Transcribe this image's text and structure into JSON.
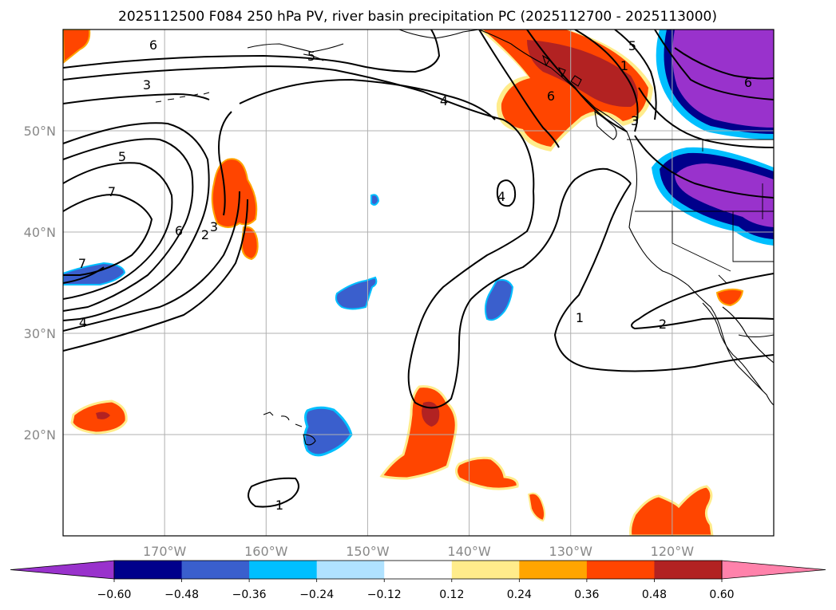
{
  "title": "2025112500 F084 250 hPa PV, river basin precipitation PC (2025112700 - 2025113000)",
  "map": {
    "projection": "lat-lon",
    "lon_range": [
      -180,
      -110
    ],
    "lat_range": [
      10,
      60
    ],
    "lon_ticks": [
      -170,
      -160,
      -150,
      -140,
      -130,
      -120
    ],
    "lon_tick_labels": [
      "170°W",
      "160°W",
      "150°W",
      "140°W",
      "130°W",
      "120°W"
    ],
    "lat_ticks": [
      20,
      30,
      40,
      50
    ],
    "lat_tick_labels": [
      "20°N",
      "30°N",
      "40°N",
      "50°N"
    ],
    "grid": true
  },
  "colorbar": {
    "extend": "both",
    "boundaries": [
      -0.6,
      -0.48,
      -0.36,
      -0.24,
      -0.12,
      0.12,
      0.24,
      0.36,
      0.48,
      0.6
    ],
    "labels": [
      "−0.60",
      "−0.48",
      "−0.36",
      "−0.24",
      "−0.12",
      "0.12",
      "0.24",
      "0.36",
      "0.48",
      "0.60"
    ],
    "colors": [
      "#9932cc",
      "#00008b",
      "#3a5fcd",
      "#00bfff",
      "#b0e2ff",
      "#ffffff",
      "#ffec8b",
      "#ffa500",
      "#ff4500",
      "#b22222",
      "#ff82ab"
    ]
  },
  "contour_labels": [
    "6",
    "3",
    "5",
    "7",
    "6",
    "2",
    "3",
    "7",
    "4",
    "5",
    "4",
    "4",
    "5",
    "1",
    "6",
    "1",
    "2",
    "1",
    "6",
    "3"
  ],
  "chart_data": {
    "type": "map",
    "fields": [
      "250 hPa PV (PVU contours)",
      "river basin precipitation PC (shaded)"
    ],
    "pv_contour_levels": [
      1,
      2,
      3,
      4,
      5,
      6,
      7
    ],
    "shaded_features": [
      {
        "sign": "positive",
        "max_class": "0.48-0.60",
        "lon": -133,
        "lat": 55
      },
      {
        "sign": "positive",
        "max_class": "0.48-0.60",
        "lon": -145,
        "lat": 22
      },
      {
        "sign": "positive",
        "max_class": "0.48-0.60",
        "lon": -176,
        "lat": 22
      },
      {
        "sign": "positive",
        "max_class": "0.36-0.48",
        "lon": -163,
        "lat": 43
      },
      {
        "sign": "positive",
        "max_class": "0.36-0.48",
        "lon": -139,
        "lat": 16
      },
      {
        "sign": "positive",
        "max_class": "0.36-0.48",
        "lon": -116,
        "lat": 13
      },
      {
        "sign": "positive",
        "max_class": "0.36-0.48",
        "lon": -178,
        "lat": 58
      },
      {
        "sign": "negative",
        "max_class": "<-0.60",
        "lon": -115,
        "lat": 55
      },
      {
        "sign": "negative",
        "max_class": "<-0.60",
        "lon": -115,
        "lat": 44
      },
      {
        "sign": "negative",
        "max_class": "-0.48 to -0.36",
        "lon": -154,
        "lat": 20
      },
      {
        "sign": "negative",
        "max_class": "-0.48 to -0.36",
        "lon": -152,
        "lat": 34
      },
      {
        "sign": "negative",
        "max_class": "-0.48 to -0.36",
        "lon": -177,
        "lat": 35
      },
      {
        "sign": "negative",
        "max_class": "-0.48 to -0.36",
        "lon": -137,
        "lat": 33
      }
    ]
  }
}
